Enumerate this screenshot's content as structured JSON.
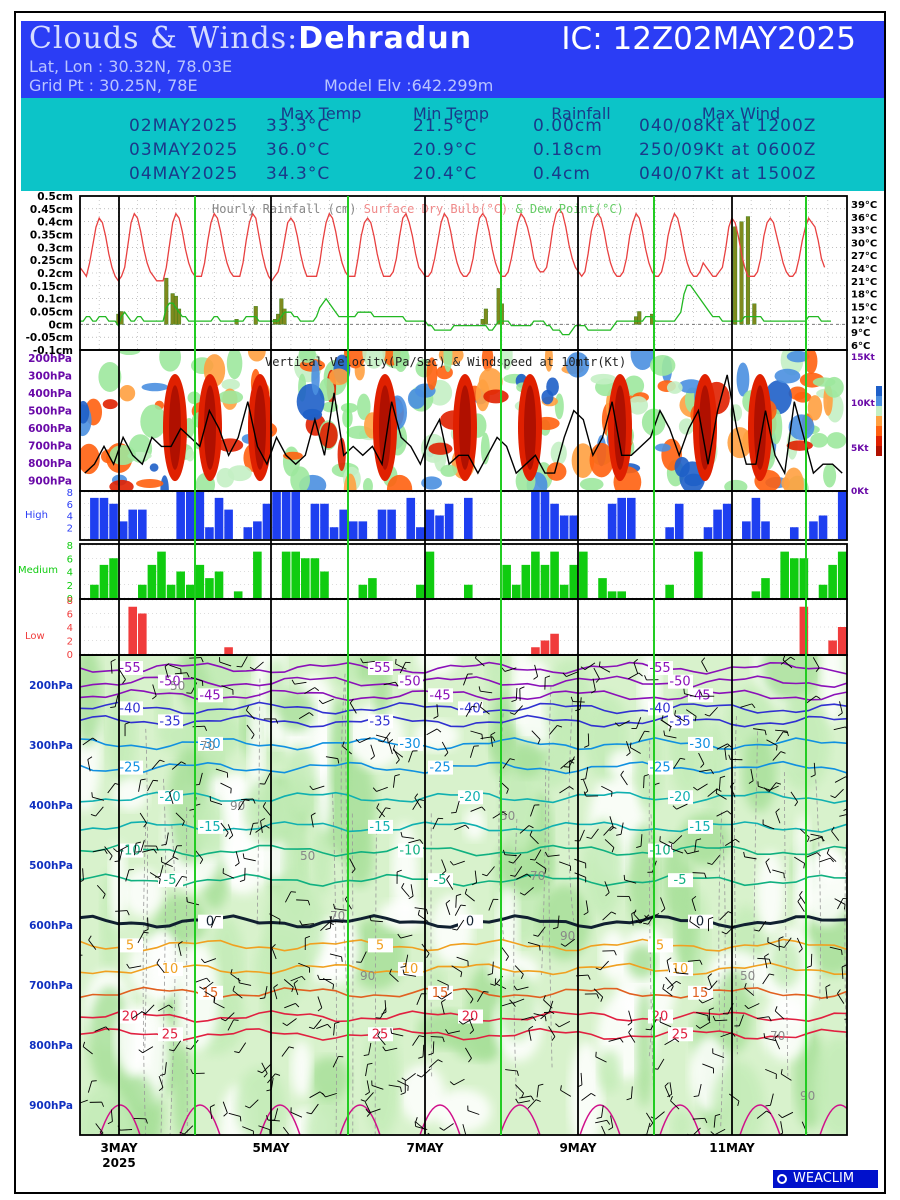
{
  "header": {
    "title_prefix": "Clouds & Winds:",
    "title_location": "Dehradun",
    "ic": "IC: 12Z02MAY2025",
    "latlon": "Lat, Lon : 30.32N, 78.03E",
    "gridpt": "Grid Pt  : 30.25N, 78E",
    "elev": "Model Elv :642.299m"
  },
  "summary": {
    "columns": [
      "Max Temp",
      "Min Temp",
      "Rainfall",
      "Max Wind"
    ],
    "rows": [
      {
        "date": "02MAY2025",
        "max": "33.3°C",
        "min": "21.5°C",
        "rain": "0.00cm",
        "wind": "040/08Kt at 1200Z"
      },
      {
        "date": "03MAY2025",
        "max": "36.0°C",
        "min": "20.9°C",
        "rain": "0.18cm",
        "wind": "250/09Kt at 0600Z"
      },
      {
        "date": "04MAY2025",
        "max": "34.3°C",
        "min": "20.4°C",
        "rain": "0.4cm",
        "wind": "040/07Kt at 1500Z"
      }
    ]
  },
  "chart_data": [
    {
      "type": "line",
      "panel": "rain-temp",
      "title": "Hourly Rainfall (cm)   Surface Dry Bulb(°C)   & Dew Point(°C)",
      "yticks_left": [
        "0.5cm",
        "0.45cm",
        "0.4cm",
        "0.35cm",
        "0.3cm",
        "0.25cm",
        "0.2cm",
        "0.15cm",
        "0.1cm",
        "0.05cm",
        "0cm",
        "-0.05cm",
        "-0.1cm"
      ],
      "yticks_right": [
        "39°C",
        "36°C",
        "33°C",
        "30°C",
        "27°C",
        "24°C",
        "21°C",
        "18°C",
        "15°C",
        "12°C",
        "9°C",
        "6°C"
      ],
      "temp_range": [
        6,
        39
      ],
      "rain_range": [
        -0.1,
        0.5
      ],
      "hours": 240,
      "dry_bulb": [
        24,
        23,
        22,
        25,
        29,
        33,
        35,
        34,
        31,
        27,
        24,
        22,
        21,
        22,
        24,
        29,
        34,
        36,
        35,
        32,
        28,
        25,
        23,
        22,
        21,
        21,
        21,
        24,
        29,
        34,
        36,
        35,
        32,
        28,
        25,
        23,
        22,
        22,
        22,
        25,
        30,
        34,
        36,
        35,
        32,
        28,
        25,
        23,
        22,
        22,
        22,
        25,
        30,
        34,
        36,
        35,
        31,
        27,
        24,
        22,
        21,
        22,
        23,
        26,
        30,
        34,
        35,
        34,
        31,
        27,
        24,
        22,
        22,
        22,
        22,
        25,
        30,
        34,
        36,
        35,
        32,
        28,
        25,
        23,
        22,
        22,
        22,
        26,
        31,
        34,
        35,
        34,
        31,
        27,
        24,
        22,
        22,
        22,
        23,
        26,
        31,
        35,
        36,
        34,
        31,
        27,
        24,
        23,
        22,
        22,
        23,
        26,
        30,
        34,
        36,
        35,
        32,
        28,
        25,
        23,
        22,
        22,
        23,
        26,
        31,
        35,
        36,
        35,
        32,
        28,
        25,
        23,
        22,
        22,
        23,
        26,
        30,
        34,
        36,
        35,
        33,
        30,
        26,
        24,
        23,
        23,
        24,
        28,
        33,
        36,
        37,
        36,
        33,
        29,
        26,
        24,
        23,
        22,
        23,
        27,
        32,
        35,
        36,
        35,
        32,
        28,
        25,
        23,
        22,
        22,
        23,
        26,
        31,
        34,
        36,
        35,
        32,
        28,
        25,
        23,
        22,
        22,
        23,
        26,
        31,
        34,
        36,
        35,
        32,
        28,
        25,
        23,
        22,
        22,
        23,
        25,
        24,
        23,
        22,
        22,
        23,
        24,
        28,
        33,
        35,
        34,
        31,
        27,
        24,
        22,
        22,
        22,
        23,
        26,
        31,
        34,
        35,
        34,
        31,
        28,
        25,
        23,
        22,
        22,
        23,
        26,
        30,
        33,
        35,
        34,
        33,
        30,
        26,
        24
      ],
      "dew_point": [
        12,
        12,
        13,
        13,
        12,
        12,
        13,
        13,
        13,
        12,
        12,
        12,
        11,
        13,
        14,
        13,
        12,
        12,
        13,
        13,
        12,
        12,
        12,
        12,
        12,
        12,
        12,
        15,
        16,
        16,
        15,
        14,
        13,
        13,
        12,
        12,
        12,
        12,
        12,
        12,
        12,
        12,
        13,
        13,
        12,
        12,
        12,
        12,
        12,
        12,
        12,
        12,
        13,
        13,
        13,
        13,
        12,
        12,
        12,
        12,
        12,
        12,
        12,
        13,
        14,
        14,
        14,
        13,
        13,
        12,
        12,
        12,
        12,
        12,
        13,
        15,
        16,
        17,
        16,
        15,
        14,
        13,
        13,
        13,
        13,
        13,
        13,
        14,
        14,
        14,
        14,
        14,
        13,
        13,
        13,
        13,
        13,
        13,
        13,
        13,
        13,
        13,
        12,
        12,
        12,
        12,
        12,
        12,
        12,
        11,
        11,
        10,
        10,
        10,
        10,
        10,
        10,
        11,
        11,
        11,
        11,
        11,
        11,
        11,
        11,
        11,
        11,
        11,
        10,
        10,
        11,
        12,
        12,
        12,
        12,
        11,
        11,
        11,
        11,
        11,
        11,
        11,
        12,
        12,
        12,
        12,
        11,
        11,
        10,
        10,
        10,
        9,
        9,
        9,
        10,
        11,
        11,
        11,
        11,
        10,
        10,
        10,
        10,
        10,
        10,
        10,
        10,
        11,
        12,
        12,
        12,
        12,
        12,
        12,
        12,
        12,
        12,
        13,
        13,
        13,
        12,
        12,
        12,
        12,
        12,
        12,
        12,
        13,
        14,
        18,
        20,
        20,
        19,
        18,
        17,
        16,
        15,
        14,
        13,
        13,
        13,
        12,
        12,
        12,
        12,
        12,
        12,
        12,
        13,
        13,
        13,
        13,
        13,
        13,
        12,
        12,
        12,
        12,
        12,
        12,
        12,
        12,
        12,
        12,
        12,
        12,
        12,
        12,
        13,
        13,
        13,
        13,
        12,
        12,
        12,
        12
      ],
      "rain_bars": [
        [
          12,
          0.04
        ],
        [
          13,
          0.05
        ],
        [
          27,
          0.18
        ],
        [
          29,
          0.12
        ],
        [
          30,
          0.11
        ],
        [
          31,
          0.06
        ],
        [
          49,
          0.02
        ],
        [
          55,
          0.07
        ],
        [
          61,
          0.02
        ],
        [
          62,
          0.04
        ],
        [
          63,
          0.1
        ],
        [
          64,
          0.06
        ],
        [
          126,
          0.02
        ],
        [
          127,
          0.06
        ],
        [
          131,
          0.14
        ],
        [
          132,
          0.08
        ],
        [
          174,
          0.03
        ],
        [
          175,
          0.05
        ],
        [
          179,
          0.04
        ],
        [
          205,
          0.38
        ],
        [
          207,
          0.4
        ],
        [
          209,
          0.42
        ],
        [
          211,
          0.08
        ]
      ]
    },
    {
      "type": "heatmap",
      "panel": "vertical-velocity",
      "title": "Vertical Velocity(Pa/Sec) & Windspeed at 10mtr(Kt)",
      "ylabels": [
        "200hPa",
        "300hPa",
        "400hPa",
        "500hPa",
        "600hPa",
        "700hPa",
        "800hPa",
        "900hPa"
      ],
      "right_labels": [
        "15Kt",
        "10Kt",
        "5Kt",
        "0Kt"
      ],
      "windspeed_kt": [
        2,
        3,
        5,
        3,
        6,
        4,
        3,
        6,
        5,
        5,
        7,
        6,
        5,
        9,
        7,
        4,
        6,
        10,
        5,
        3,
        6,
        4,
        3,
        4,
        8,
        4,
        11,
        4,
        5,
        4,
        5,
        3,
        10,
        6,
        5,
        3,
        6,
        8,
        3,
        4,
        4,
        2,
        4,
        6,
        5,
        2,
        3,
        4,
        2,
        2,
        6,
        9,
        8,
        4,
        6,
        10,
        4,
        4,
        5,
        6,
        9,
        7,
        4,
        7,
        9,
        3,
        9,
        13,
        7,
        3,
        3,
        9,
        4,
        2,
        10,
        6,
        2,
        3,
        3,
        2
      ]
    },
    {
      "type": "bar",
      "panel": "high-cloud",
      "label": "High",
      "yticks": [
        "8",
        "6",
        "4",
        "2"
      ],
      "values": [
        0,
        7,
        7,
        6,
        3,
        5,
        5,
        0,
        0,
        0,
        8,
        8,
        8,
        2,
        7,
        5,
        0,
        2,
        3,
        6,
        8,
        8,
        8,
        0,
        6,
        6,
        2,
        5,
        3,
        3,
        0,
        5,
        5,
        0,
        7,
        2,
        5,
        4,
        6,
        0,
        7,
        0,
        0,
        0,
        0,
        0,
        0,
        8,
        8,
        6,
        4,
        4,
        0,
        0,
        0,
        6,
        7,
        7,
        0,
        0,
        0,
        2,
        6,
        0,
        0,
        2,
        5,
        6,
        0,
        3,
        7,
        3,
        0,
        0,
        2,
        0,
        3,
        4,
        0,
        8
      ],
      "ylim": [
        0,
        8
      ]
    },
    {
      "type": "bar",
      "panel": "medium-cloud",
      "label": "Medium",
      "yticks": [
        "8",
        "6",
        "4",
        "2",
        "0"
      ],
      "values": [
        0,
        2,
        5,
        6,
        0,
        0,
        2,
        5,
        7,
        2,
        4,
        2,
        5,
        3,
        4,
        0,
        1,
        0,
        7,
        0,
        0,
        7,
        7,
        6,
        6,
        4,
        0,
        0,
        0,
        2,
        3,
        0,
        0,
        0,
        0,
        2,
        7,
        0,
        0,
        0,
        2,
        0,
        0,
        0,
        5,
        2,
        5,
        7,
        5,
        7,
        2,
        5,
        7,
        0,
        3,
        1,
        1,
        0,
        0,
        0,
        0,
        2,
        0,
        0,
        7,
        0,
        0,
        0,
        0,
        0,
        1,
        3,
        0,
        7,
        6,
        6,
        0,
        2,
        5,
        7
      ],
      "ylim": [
        0,
        8
      ]
    },
    {
      "type": "bar",
      "panel": "low-cloud",
      "label": "Low",
      "yticks": [
        "8",
        "6",
        "4",
        "2",
        "0"
      ],
      "values": [
        0,
        0,
        0,
        0,
        0,
        7,
        6,
        0,
        0,
        0,
        0,
        0,
        0,
        0,
        0,
        1,
        0,
        0,
        0,
        0,
        0,
        0,
        0,
        0,
        0,
        0,
        0,
        0,
        0,
        0,
        0,
        0,
        0,
        0,
        0,
        0,
        0,
        0,
        0,
        0,
        0,
        0,
        0,
        0,
        0,
        0,
        0,
        1,
        2,
        3,
        0,
        0,
        0,
        0,
        0,
        0,
        0,
        0,
        0,
        0,
        0,
        0,
        0,
        0,
        0,
        0,
        0,
        0,
        0,
        0,
        0,
        0,
        0,
        0,
        0,
        7,
        0,
        0,
        2,
        4
      ],
      "ylim": [
        0,
        8
      ]
    },
    {
      "type": "line",
      "panel": "cross-section",
      "ylabels": [
        "200hPa",
        "300hPa",
        "400hPa",
        "500hPa",
        "600hPa",
        "700hPa",
        "800hPa",
        "900hPa"
      ],
      "xlabels": [
        "3MAY",
        "5MAY",
        "7MAY",
        "9MAY",
        "11MAY"
      ],
      "year": "2025",
      "isotherms": [
        -55,
        -50,
        -45,
        -40,
        -35,
        -30,
        -25,
        -20,
        -15,
        -10,
        -5,
        0,
        5,
        10,
        15,
        20,
        25
      ],
      "humidity_labels": [
        50,
        70,
        90
      ]
    }
  ],
  "footer": {
    "brand": "WEACLIM"
  }
}
